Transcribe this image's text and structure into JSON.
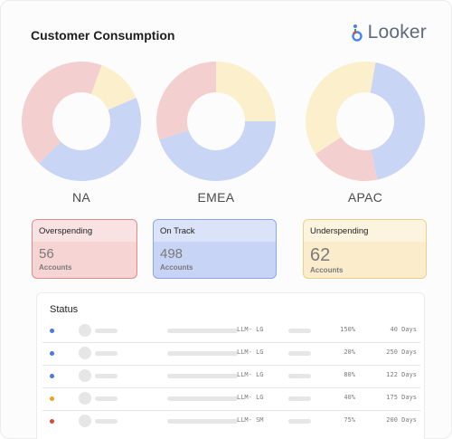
{
  "header": {
    "title": "Customer Consumption",
    "brand": "Looker"
  },
  "colors": {
    "red": "#f3cfcf",
    "blue": "#c9d5f5",
    "yellow": "#fbefcc",
    "dot_blue": "#4a76e6",
    "dot_orange": "#f0a21c",
    "dot_red": "#d44b3a"
  },
  "regions": [
    {
      "name": "NA",
      "segments": [
        {
          "color": "yellow",
          "value": 13
        },
        {
          "color": "blue",
          "value": 44
        },
        {
          "color": "red",
          "value": 43
        }
      ]
    },
    {
      "name": "EMEA",
      "segments": [
        {
          "color": "blue",
          "value": 45
        },
        {
          "color": "red",
          "value": 30
        },
        {
          "color": "yellow",
          "value": 25
        }
      ]
    },
    {
      "name": "APAC",
      "segments": [
        {
          "color": "blue",
          "value": 44
        },
        {
          "color": "red",
          "value": 19
        },
        {
          "color": "yellow",
          "value": 37
        }
      ]
    }
  ],
  "cards": {
    "overspending": {
      "label": "Overspending",
      "count": "56",
      "unit": "Accounts"
    },
    "on_track": {
      "label": "On Track",
      "count": "498",
      "unit": "Accounts"
    },
    "underspending": {
      "label": "Underspending",
      "count": "62",
      "unit": "Accounts"
    }
  },
  "status": {
    "title": "Status",
    "rows": [
      {
        "dot": "dot_blue",
        "model": "LLM- LG",
        "pct": "150%",
        "days": "40 Days"
      },
      {
        "dot": "dot_blue",
        "model": "LLM- LG",
        "pct": "20%",
        "days": "250 Days"
      },
      {
        "dot": "dot_blue",
        "model": "LLM- LG",
        "pct": "80%",
        "days": "122 Days"
      },
      {
        "dot": "dot_orange",
        "model": "LLM- LG",
        "pct": "40%",
        "days": "175 Days"
      },
      {
        "dot": "dot_red",
        "model": "LLM- SM",
        "pct": "75%",
        "days": "200 Days"
      }
    ]
  }
}
